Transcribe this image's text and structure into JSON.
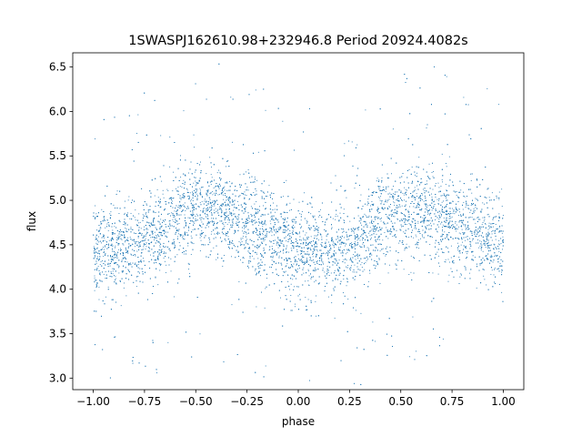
{
  "chart_data": {
    "type": "scatter",
    "title": "1SWASPJ162610.98+232946.8 Period 20924.4082s",
    "xlabel": "phase",
    "ylabel": "flux",
    "xlim": [
      -1.1,
      1.1
    ],
    "ylim": [
      2.87,
      6.66
    ],
    "grid": false,
    "point_color": "#1f77b4",
    "x_ticks": [
      -1.0,
      -0.75,
      -0.5,
      -0.25,
      0.0,
      0.25,
      0.5,
      0.75,
      1.0
    ],
    "x_tick_labels": [
      "−1.00",
      "−0.75",
      "−0.50",
      "−0.25",
      "0.00",
      "0.25",
      "0.50",
      "0.75",
      "1.00"
    ],
    "y_ticks": [
      3.0,
      3.5,
      4.0,
      4.5,
      5.0,
      5.5,
      6.0,
      6.5
    ],
    "y_tick_labels": [
      "3.0",
      "3.5",
      "4.0",
      "4.5",
      "5.0",
      "5.5",
      "6.0",
      "6.5"
    ],
    "series": [
      {
        "x": [
          -1.0,
          -0.9,
          -0.8,
          -0.7,
          -0.6,
          -0.5,
          -0.4,
          -0.3,
          -0.2,
          -0.1,
          0.0,
          0.1,
          0.2,
          0.3,
          0.4,
          0.5,
          0.6,
          0.7,
          0.8,
          0.9,
          1.0
        ],
        "y": [
          4.42,
          4.45,
          4.48,
          4.62,
          4.8,
          4.9,
          4.88,
          4.78,
          4.68,
          4.55,
          4.45,
          4.4,
          4.42,
          4.55,
          4.75,
          4.85,
          4.88,
          4.8,
          4.7,
          4.58,
          4.5
        ]
      }
    ]
  }
}
